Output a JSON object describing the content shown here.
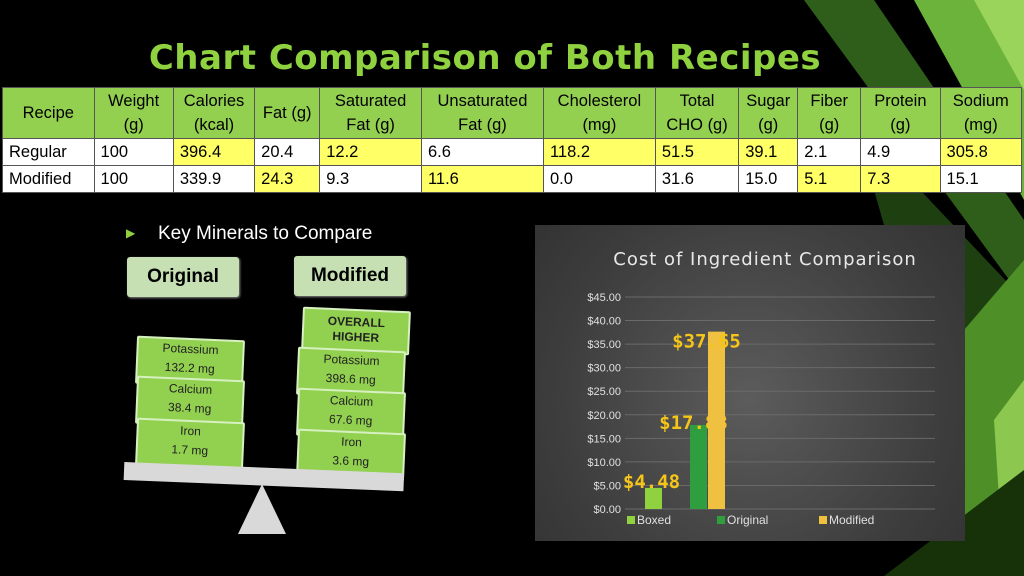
{
  "slide": {
    "title": "Chart Comparison of Both Recipes"
  },
  "nutrition_table": {
    "headers": [
      "Recipe",
      "Weight (g)",
      "Calories (kcal)",
      "Fat (g)",
      "Saturated Fat (g)",
      "Unsaturated Fat (g)",
      "Cholesterol (mg)",
      "Total CHO (g)",
      "Sugar (g)",
      "Fiber (g)",
      "Protein (g)",
      "Sodium (mg)"
    ],
    "rows": [
      {
        "name": "Regular",
        "cells": [
          "Regular",
          "100",
          "396.4",
          "20.4",
          "12.2",
          "6.6",
          "118.2",
          "51.5",
          "39.1",
          "2.1",
          "4.9",
          "305.8"
        ],
        "highlight": [
          false,
          false,
          true,
          false,
          true,
          false,
          true,
          true,
          true,
          false,
          false,
          true
        ]
      },
      {
        "name": "Modified",
        "cells": [
          "Modified",
          "100",
          "339.9",
          "24.3",
          "9.3",
          "11.6",
          "0.0",
          "31.6",
          "15.0",
          "5.1",
          "7.3",
          "15.1"
        ],
        "highlight": [
          false,
          false,
          false,
          true,
          false,
          true,
          false,
          false,
          false,
          true,
          true,
          false
        ]
      }
    ],
    "colors": {
      "header": "#93d050",
      "highlight": "#ffff66"
    }
  },
  "minerals": {
    "heading": "Key Minerals to Compare",
    "original_label": "Original",
    "modified_label": "Modified",
    "overall_higher": "OVERALL HIGHER",
    "original": [
      {
        "name": "Potassium",
        "value": "132.2 mg"
      },
      {
        "name": "Calcium",
        "value": "38.4 mg"
      },
      {
        "name": "Iron",
        "value": "1.7 mg"
      }
    ],
    "modified": [
      {
        "name": "Potassium",
        "value": "398.6 mg"
      },
      {
        "name": "Calcium",
        "value": "67.6 mg"
      },
      {
        "name": "Iron",
        "value": "3.6 mg"
      }
    ]
  },
  "chart_data": {
    "type": "bar",
    "title": "Cost of Ingredient Comparison",
    "categories": [
      "Boxed",
      "Original",
      "Modified"
    ],
    "values": [
      4.48,
      17.83,
      37.65
    ],
    "data_labels": [
      "$4.48",
      "$17.83",
      "$37.65"
    ],
    "colors": [
      "#8fd13f",
      "#2e9e3e",
      "#f0c040"
    ],
    "yticks": [
      "$0.00",
      "$5.00",
      "$10.00",
      "$15.00",
      "$20.00",
      "$25.00",
      "$30.00",
      "$35.00",
      "$40.00",
      "$45.00"
    ],
    "ylim": [
      0,
      45
    ],
    "legend": "bottom",
    "grid": true
  }
}
